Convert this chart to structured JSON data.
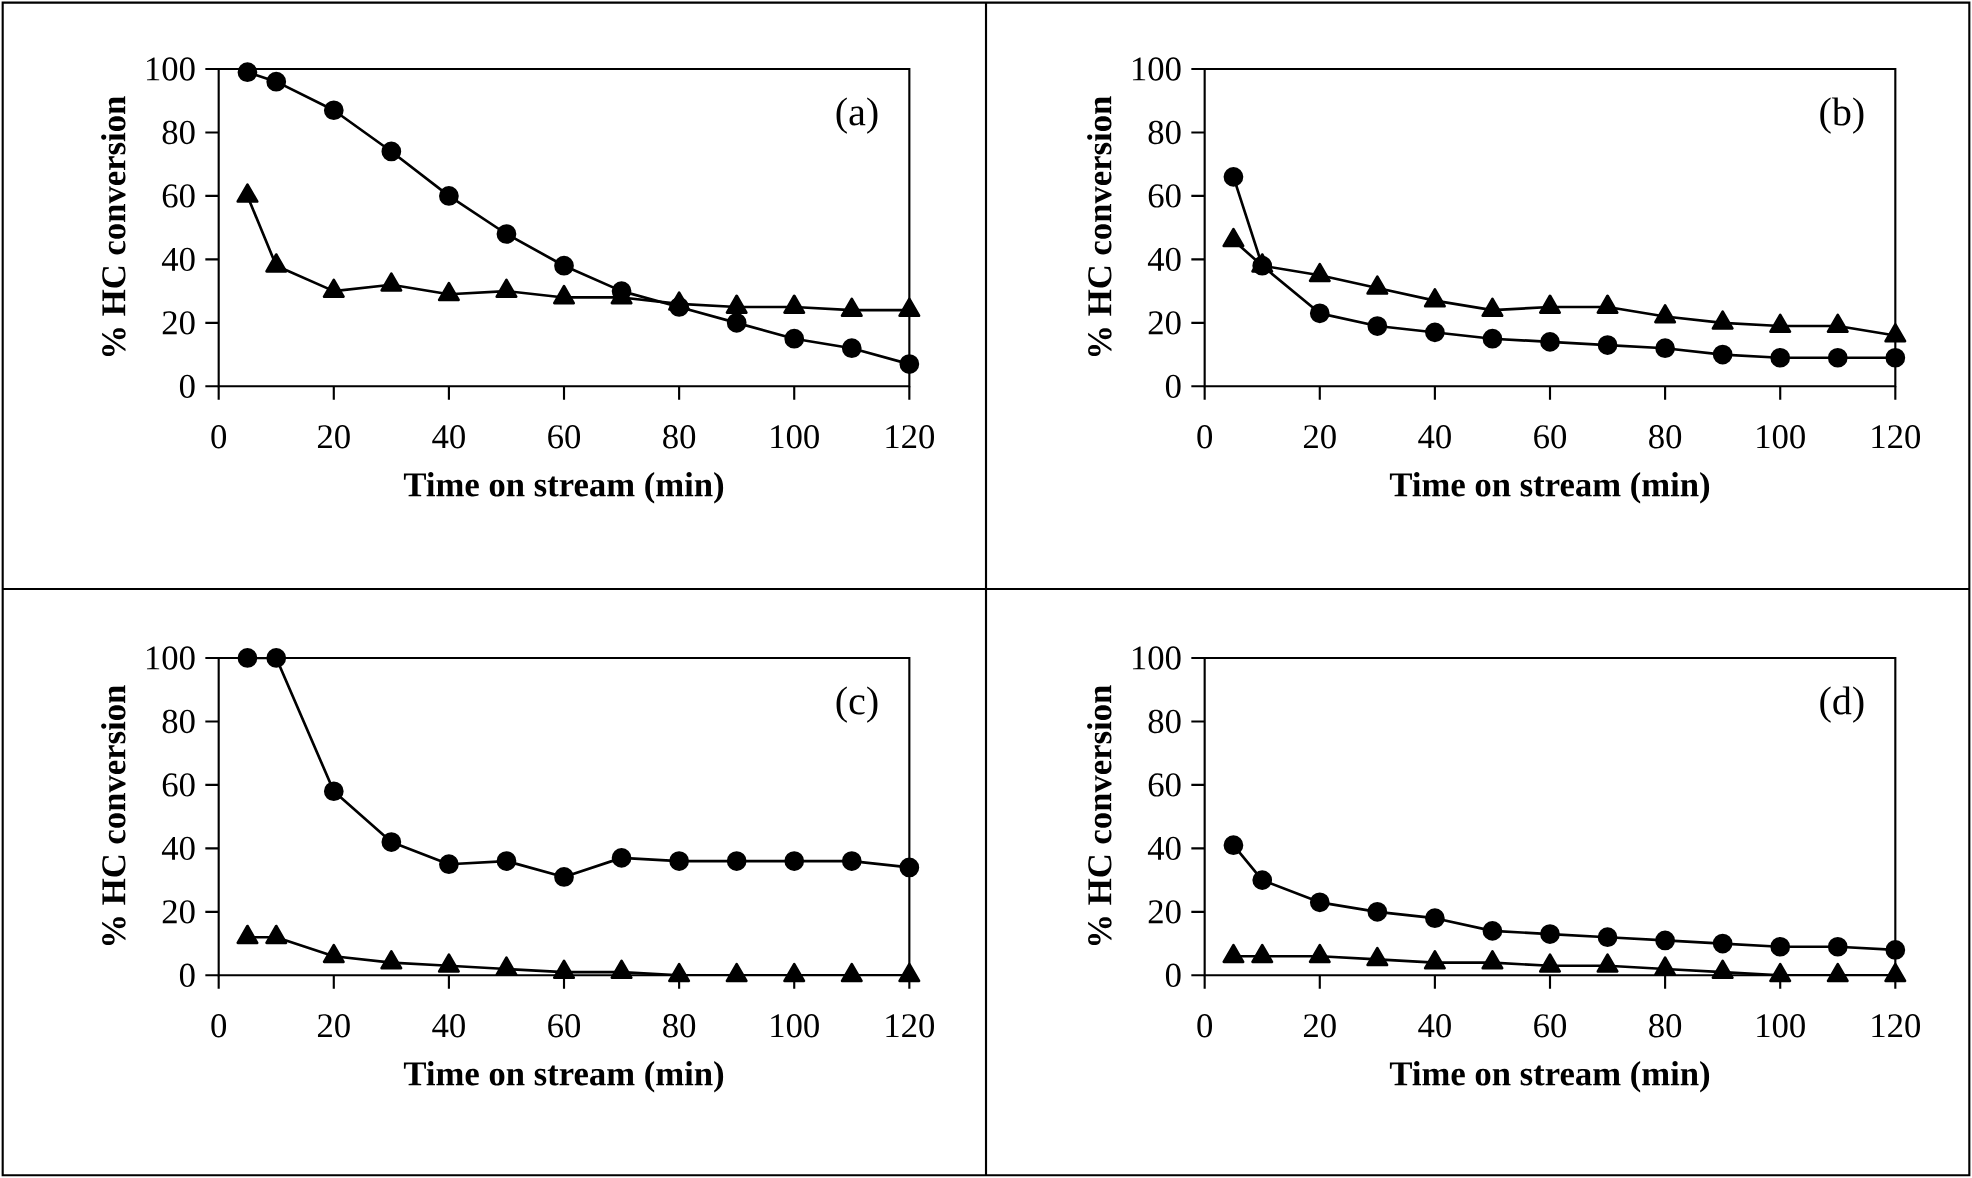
{
  "chart_data": [
    {
      "type": "line",
      "xlabel": "Time on stream (min)",
      "ylabel": "% HC conversion",
      "annotations": [
        "(a)"
      ],
      "xlim": [
        0,
        120
      ],
      "ylim": [
        0,
        100
      ],
      "xticks": [
        0,
        20,
        40,
        60,
        80,
        100,
        120
      ],
      "yticks": [
        0,
        20,
        40,
        60,
        80,
        100
      ],
      "x": [
        5,
        10,
        20,
        30,
        40,
        50,
        60,
        70,
        80,
        90,
        100,
        110,
        120
      ],
      "grid": false,
      "line_style": "solid",
      "series": [
        {
          "color": "#000000",
          "marker": "circle",
          "values": [
            99,
            96,
            87,
            74,
            60,
            48,
            38,
            30,
            25,
            20,
            15,
            12,
            7
          ]
        },
        {
          "color": "#000000",
          "marker": "triangle",
          "values": [
            60,
            38,
            30,
            32,
            29,
            30,
            28,
            28,
            26,
            25,
            25,
            24,
            24
          ]
        }
      ]
    },
    {
      "type": "line",
      "xlabel": "Time on stream (min)",
      "ylabel": "% HC conversion",
      "annotations": [
        "(b)"
      ],
      "xlim": [
        0,
        120
      ],
      "ylim": [
        0,
        100
      ],
      "xticks": [
        0,
        20,
        40,
        60,
        80,
        100,
        120
      ],
      "yticks": [
        0,
        20,
        40,
        60,
        80,
        100
      ],
      "x": [
        5,
        10,
        20,
        30,
        40,
        50,
        60,
        70,
        80,
        90,
        100,
        110,
        120
      ],
      "grid": false,
      "line_style": "solid",
      "series": [
        {
          "color": "#000000",
          "marker": "circle",
          "values": [
            66,
            38,
            23,
            19,
            17,
            15,
            14,
            13,
            12,
            10,
            9,
            9,
            9
          ]
        },
        {
          "color": "#000000",
          "marker": "triangle",
          "values": [
            46,
            38,
            35,
            31,
            27,
            24,
            25,
            25,
            22,
            20,
            19,
            19,
            16
          ]
        }
      ]
    },
    {
      "type": "line",
      "xlabel": "Time on stream (min)",
      "ylabel": "% HC conversion",
      "annotations": [
        "(c)"
      ],
      "xlim": [
        0,
        120
      ],
      "ylim": [
        0,
        100
      ],
      "xticks": [
        0,
        20,
        40,
        60,
        80,
        100,
        120
      ],
      "yticks": [
        0,
        20,
        40,
        60,
        80,
        100
      ],
      "x": [
        5,
        10,
        20,
        30,
        40,
        50,
        60,
        70,
        80,
        90,
        100,
        110,
        120
      ],
      "grid": false,
      "line_style": "solid",
      "series": [
        {
          "color": "#000000",
          "marker": "circle",
          "values": [
            100,
            100,
            58,
            42,
            35,
            36,
            31,
            37,
            36,
            36,
            36,
            36,
            34
          ]
        },
        {
          "color": "#000000",
          "marker": "triangle",
          "values": [
            12,
            12,
            6,
            4,
            3,
            2,
            1,
            1,
            0,
            0,
            0,
            0,
            0
          ]
        }
      ]
    },
    {
      "type": "line",
      "xlabel": "Time on stream (min)",
      "ylabel": "% HC conversion",
      "annotations": [
        "(d)"
      ],
      "xlim": [
        0,
        120
      ],
      "ylim": [
        0,
        100
      ],
      "xticks": [
        0,
        20,
        40,
        60,
        80,
        100,
        120
      ],
      "yticks": [
        0,
        20,
        40,
        60,
        80,
        100
      ],
      "x": [
        5,
        10,
        20,
        30,
        40,
        50,
        60,
        70,
        80,
        90,
        100,
        110,
        120
      ],
      "grid": false,
      "line_style": "solid",
      "series": [
        {
          "color": "#000000",
          "marker": "circle",
          "values": [
            41,
            30,
            23,
            20,
            18,
            14,
            13,
            12,
            11,
            10,
            9,
            9,
            8
          ]
        },
        {
          "color": "#000000",
          "marker": "triangle",
          "values": [
            6,
            6,
            6,
            5,
            4,
            4,
            3,
            3,
            2,
            1,
            0,
            0,
            0
          ]
        }
      ]
    }
  ]
}
